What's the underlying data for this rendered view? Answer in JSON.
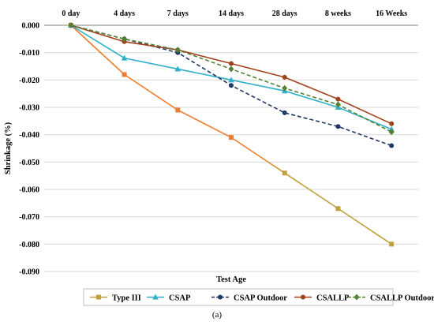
{
  "chart_data": {
    "type": "line",
    "categories": [
      "0 day",
      "4 days",
      "7 days",
      "14 days",
      "28 days",
      "8 weeks",
      "16 Weeks"
    ],
    "ylabel": "Shrinkage (%)",
    "xlabel": "Test Age",
    "ylim": [
      -0.09,
      0
    ],
    "yticks": [
      0,
      -0.01,
      -0.02,
      -0.03,
      -0.04,
      -0.05,
      -0.06,
      -0.07,
      -0.08,
      -0.09
    ],
    "ytick_labels": [
      "0.000",
      "-0.010",
      "-0.020",
      "-0.030",
      "-0.040",
      "-0.050",
      "-0.060",
      "-0.070",
      "-0.080",
      "-0.090"
    ],
    "x_axis_position": "top",
    "grid": "horizontal",
    "legend_position": "bottom",
    "series": [
      {
        "name": "Type III",
        "values": [
          0,
          -0.018,
          -0.031,
          -0.041,
          -0.054,
          -0.067,
          -0.08
        ],
        "color": "#ED7D31",
        "color_end": "#BFA03A",
        "marker": "square",
        "dash": "solid"
      },
      {
        "name": "CSAP",
        "values": [
          0,
          -0.012,
          -0.016,
          -0.02,
          -0.024,
          -0.03,
          -0.038
        ],
        "color": "#2EB0C8",
        "marker": "triangle",
        "dash": "solid"
      },
      {
        "name": "CSAP Outdoor",
        "values": [
          0,
          -0.005,
          -0.01,
          -0.022,
          -0.032,
          -0.037,
          -0.044
        ],
        "color": "#1F3864",
        "marker": "circle",
        "dash": "dashed"
      },
      {
        "name": "CSALLP",
        "values": [
          0,
          -0.006,
          -0.009,
          -0.014,
          -0.019,
          -0.027,
          -0.036
        ],
        "color": "#A0421C",
        "marker": "circle",
        "dash": "solid"
      },
      {
        "name": "CSALLP Outdoor",
        "values": [
          0,
          -0.005,
          -0.009,
          -0.016,
          -0.023,
          -0.029,
          -0.039
        ],
        "color": "#548235",
        "marker": "diamond",
        "dash": "dashed"
      }
    ]
  },
  "caption": "(a)"
}
